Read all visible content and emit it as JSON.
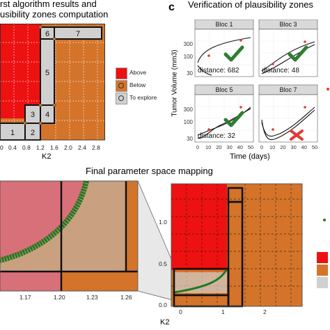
{
  "panel_b": {
    "title_line1": "rst algorithm results and",
    "title_line2": "usibility zones computation",
    "xlabel": "K2",
    "xticks": [
      "0",
      "0.4",
      "0.8",
      "1.2",
      "1.6",
      "2.0",
      "2.4",
      "2.8"
    ],
    "zones": [
      "1",
      "2",
      "3",
      "4",
      "5",
      "6",
      "7"
    ],
    "legend": [
      {
        "label": "Above",
        "color": "#ee1111"
      },
      {
        "label": "Below",
        "color": "#d4742a"
      },
      {
        "label": "To explore",
        "color": "#d0d0d0"
      }
    ]
  },
  "panel_c": {
    "letter": "c",
    "title": "Verification of plausibility zones",
    "ylabel": "Tumor Volume (mm3)",
    "xlabel": "Time (days)",
    "yticks": [
      "300",
      "100",
      "30"
    ],
    "xticks": [
      "0",
      "10",
      "20",
      "30",
      "40",
      "50"
    ],
    "facets": [
      {
        "name": "Bloc 1",
        "distance": "distance: 682",
        "mark": "check"
      },
      {
        "name": "Bloc 3",
        "distance": "distance: 48",
        "mark": "check"
      },
      {
        "name": "Bloc 5",
        "distance": "distance: 32",
        "mark": "check"
      },
      {
        "name": "Bloc 7",
        "distance": "",
        "mark": "cross"
      }
    ]
  },
  "panel_d": {
    "title": "Final parameter space mapping",
    "xlabel": "K2",
    "zoom_xticks": [
      "1.17",
      "1.20",
      "1.23",
      "1.26"
    ],
    "main_xticks": [
      "0",
      "1",
      "2"
    ],
    "main_yticks": [
      "1.0",
      "0.5",
      "0.0"
    ]
  },
  "colors": {
    "above": "#ee1111",
    "below": "#d4742a",
    "explore": "#d0d0d0",
    "above_zoom": "#d8707a",
    "below_zoom": "#c9a080",
    "boundary": "#1f7a1f",
    "check": "#2e7d32",
    "cross": "#e53935"
  }
}
